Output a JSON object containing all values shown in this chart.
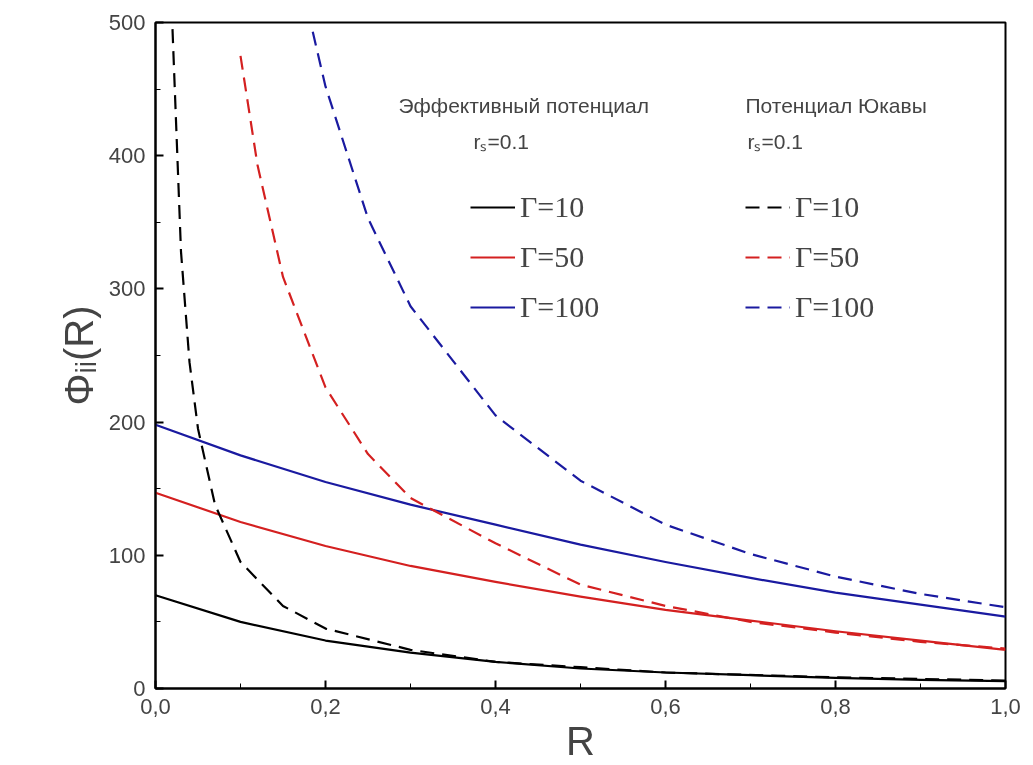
{
  "chart_data": {
    "type": "line",
    "xlabel": "R",
    "ylabel": "Φᵢᵢ(R)",
    "xlim": [
      0,
      1
    ],
    "ylim": [
      0,
      500
    ],
    "xticks": [
      {
        "value": 0,
        "label": "0,0"
      },
      {
        "value": 0.1,
        "label": null
      },
      {
        "value": 0.2,
        "label": "0,2"
      },
      {
        "value": 0.3,
        "label": null
      },
      {
        "value": 0.4,
        "label": "0,4"
      },
      {
        "value": 0.5,
        "label": null
      },
      {
        "value": 0.6,
        "label": "0,6"
      },
      {
        "value": 0.7,
        "label": null
      },
      {
        "value": 0.8,
        "label": "0,8"
      },
      {
        "value": 0.9,
        "label": null
      },
      {
        "value": 1,
        "label": "1,0"
      }
    ],
    "yticks": [
      0,
      {
        "value": 50,
        "label": null
      },
      100,
      {
        "value": 150,
        "label": null
      },
      200,
      {
        "value": 250,
        "label": null
      },
      300,
      {
        "value": 350,
        "label": null
      },
      400,
      {
        "value": 450,
        "label": null
      },
      500
    ],
    "grid": false,
    "legend": "top right",
    "annotations": [
      "Эффективный потенциал",
      "rₛ=0.1",
      "Потенциал Юкавы",
      "rₛ=0.1"
    ],
    "series": [
      {
        "name": "Γ=10",
        "color": "#000000",
        "line_style": "solid",
        "x": [
          0,
          0.1,
          0.2,
          0.3,
          0.4,
          0.5,
          0.6,
          0.7,
          0.8,
          0.9,
          1.0
        ],
        "values": [
          70,
          50,
          36,
          27,
          20,
          15,
          12,
          10,
          8,
          6.5,
          5.5
        ]
      },
      {
        "name": "Γ=50",
        "color": "#d42020",
        "line_style": "solid",
        "x": [
          0,
          0.1,
          0.2,
          0.3,
          0.4,
          0.5,
          0.6,
          0.7,
          0.8,
          0.9,
          1.0
        ],
        "values": [
          147,
          125,
          107,
          92,
          80,
          69,
          59,
          51,
          43,
          36,
          29
        ]
      },
      {
        "name": "Γ=100",
        "color": "#1a1aa0",
        "line_style": "solid",
        "x": [
          0,
          0.1,
          0.2,
          0.3,
          0.4,
          0.5,
          0.6,
          0.7,
          0.8,
          0.9,
          1.0
        ],
        "values": [
          198,
          175,
          155,
          138,
          123,
          108,
          95,
          83,
          72,
          63,
          54
        ]
      },
      {
        "name": "Γ=10",
        "color": "#000000",
        "line_style": "dashed",
        "x": [
          0.02,
          0.03,
          0.04,
          0.05,
          0.07,
          0.1,
          0.15,
          0.2,
          0.3,
          0.4,
          0.5,
          0.6,
          0.8,
          1.0
        ],
        "values": [
          495,
          328,
          245,
          195,
          138,
          95,
          62,
          45,
          29,
          20,
          16,
          12,
          8.4,
          6
        ]
      },
      {
        "name": "Γ=50",
        "color": "#d42020",
        "line_style": "dashed",
        "x": [
          0.1,
          0.12,
          0.15,
          0.2,
          0.25,
          0.3,
          0.4,
          0.5,
          0.6,
          0.7,
          0.8,
          0.9,
          1.0
        ],
        "values": [
          475,
          393,
          309,
          226,
          176,
          143,
          109,
          78,
          62,
          50,
          42,
          35,
          30
        ]
      },
      {
        "name": "Γ=100",
        "color": "#1a1aa0",
        "line_style": "dashed",
        "x": [
          0.185,
          0.2,
          0.25,
          0.3,
          0.4,
          0.5,
          0.6,
          0.7,
          0.8,
          0.9,
          1.0
        ],
        "values": [
          493,
          452,
          353,
          287,
          205,
          156,
          123,
          101,
          84,
          71,
          61
        ]
      }
    ]
  }
}
